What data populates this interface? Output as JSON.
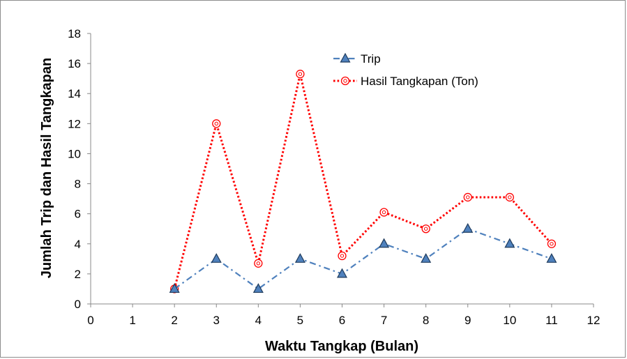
{
  "chart_data": {
    "type": "line",
    "title": "",
    "xlabel": "Waktu Tangkap (Bulan)",
    "ylabel": "Jumlah Trip dan Hasil Tangkapan",
    "xlim": [
      0,
      12
    ],
    "ylim": [
      0,
      18
    ],
    "xticks": [
      0,
      1,
      2,
      3,
      4,
      5,
      6,
      7,
      8,
      9,
      10,
      11,
      12
    ],
    "yticks": [
      0,
      2,
      4,
      6,
      8,
      10,
      12,
      14,
      16,
      18
    ],
    "grid": false,
    "legend_position": "top-right",
    "x": [
      2,
      3,
      4,
      5,
      6,
      7,
      8,
      9,
      10,
      11
    ],
    "series": [
      {
        "name": "Trip",
        "values": [
          1,
          3,
          1,
          3,
          2,
          4,
          3,
          5,
          4,
          3
        ],
        "color": "#4f81bd",
        "marker": "triangle",
        "line_style": "dash-dot"
      },
      {
        "name": "Hasil Tangkapan (Ton)",
        "values": [
          1,
          12,
          2.7,
          15.3,
          3.2,
          6.1,
          5,
          7.1,
          7.1,
          4
        ],
        "color": "#ff0000",
        "marker": "circle",
        "line_style": "dotted"
      }
    ]
  }
}
